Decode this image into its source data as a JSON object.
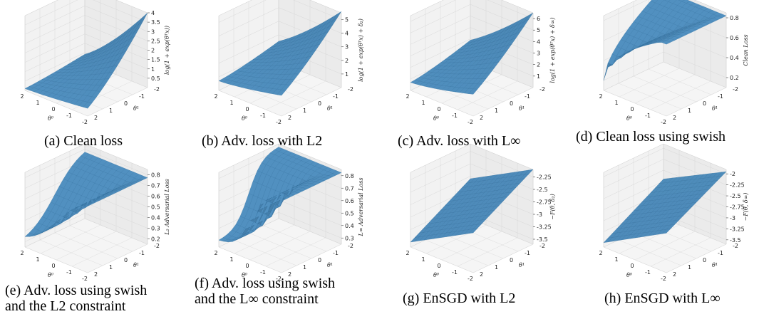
{
  "surface_color": "#5fa3d6",
  "surface_dark": "#2d5f86",
  "panels": [
    {
      "caption_line1": "(a) Clean loss",
      "caption_line2": "",
      "zlabel": "log(1 + exp(θᵀx))",
      "chart_data": {
        "type": "surface",
        "xlabel": "θ⁰",
        "ylabel": "θ¹",
        "x_ticks": [
          2,
          1,
          0,
          -1,
          -2
        ],
        "y_ticks": [
          -2,
          -1,
          0,
          1,
          2
        ],
        "z_ticks": [
          0.5,
          1.0,
          1.5,
          2.0,
          2.5,
          3.0,
          3.5,
          4.0
        ],
        "zlim": [
          0.0,
          4.0
        ],
        "corners": {
          "x-2_y-2": 4.0,
          "x2_y-2": 0.7,
          "x-2_y2": 0.7,
          "x2_y2": 0.1
        }
      }
    },
    {
      "caption_line1": "(b) Adv. loss with L2",
      "caption_line2": "",
      "zlabel": "log(1 + exp(θᵀx) + δ₂)",
      "chart_data": {
        "type": "surface",
        "xlabel": "θ⁰",
        "ylabel": "θ¹",
        "x_ticks": [
          2,
          1,
          0,
          -1,
          -2
        ],
        "y_ticks": [
          -2,
          -1,
          0,
          1,
          2
        ],
        "z_ticks": [
          1,
          2,
          3,
          4,
          5
        ],
        "zlim": [
          0,
          5.5
        ],
        "corners": {
          "x-2_y-2": 5.6,
          "x2_y-2": 2.0,
          "x-2_y2": 2.0,
          "x2_y2": 0.7
        }
      }
    },
    {
      "caption_line1": "(c) Adv. loss with L∞",
      "caption_line2": "",
      "zlabel": "log(1 + exp(θᵀx) + δ∞)",
      "chart_data": {
        "type": "surface",
        "xlabel": "θ⁰",
        "ylabel": "θ¹",
        "x_ticks": [
          2,
          1,
          0,
          -1,
          -2
        ],
        "y_ticks": [
          -2,
          -1,
          0,
          1,
          2
        ],
        "z_ticks": [
          1,
          2,
          3,
          4,
          5,
          6
        ],
        "zlim": [
          0,
          6.5
        ],
        "corners": {
          "x-2_y-2": 6.5,
          "x2_y-2": 2.5,
          "x-2_y2": 2.5,
          "x2_y2": 0.7
        }
      }
    },
    {
      "caption_line1": "(d) Clean loss using swish",
      "caption_line2": "",
      "zlabel": "Clean Loss",
      "chart_data": {
        "type": "surface",
        "xlabel": "θ⁰",
        "ylabel": "θ¹",
        "x_ticks": [
          2,
          1,
          0,
          -1,
          -2
        ],
        "y_ticks": [
          -2,
          -1,
          0,
          1,
          2
        ],
        "z_ticks": [
          0.2,
          0.4,
          0.6,
          0.8
        ],
        "zlim": [
          0.1,
          0.85
        ],
        "corners": {
          "x-2_y-2": 0.82,
          "x2_y-2": 0.75,
          "x-2_y2": 0.75,
          "x2_y2": 0.2
        }
      }
    },
    {
      "caption_line1": "(e) Adv. loss using swish",
      "caption_line2": "and the L2 constraint",
      "zlabel": "L₂ Adversarial Loss",
      "chart_data": {
        "type": "surface",
        "xlabel": "θ⁰",
        "ylabel": "θ¹",
        "x_ticks": [
          2,
          1,
          0,
          -1,
          -2
        ],
        "y_ticks": [
          -2,
          -1,
          0,
          1,
          2
        ],
        "z_ticks": [
          0.2,
          0.3,
          0.4,
          0.5,
          0.6,
          0.7,
          0.8
        ],
        "zlim": [
          0.15,
          0.85
        ],
        "corners": {
          "x-2_y-2": 0.82,
          "x2_y-2": 0.8,
          "x-2_y2": 0.8,
          "x2_y2": 0.2
        }
      }
    },
    {
      "caption_line1": "(f) Adv. loss using swish",
      "caption_line2": "and the L∞ constraint",
      "zlabel": "L∞ Adversarial Loss",
      "chart_data": {
        "type": "surface",
        "xlabel": "θ⁰",
        "ylabel": "θ¹",
        "x_ticks": [
          2,
          1,
          0,
          -1,
          -2
        ],
        "y_ticks": [
          -2,
          -1,
          0,
          1,
          2
        ],
        "z_ticks": [
          0.3,
          0.4,
          0.5,
          0.6,
          0.7,
          0.8
        ],
        "zlim": [
          0.25,
          0.85
        ],
        "corners": {
          "x-2_y-2": 0.83,
          "x2_y-2": 0.82,
          "x-2_y2": 0.82,
          "x2_y2": 0.3
        }
      }
    },
    {
      "caption_line1": "(g) EnSGD with L2",
      "caption_line2": "",
      "zlabel": "−F(θ, δ₂)",
      "chart_data": {
        "type": "surface",
        "xlabel": "θ⁰",
        "ylabel": "θ¹",
        "x_ticks": [
          2,
          1,
          0,
          -1,
          -2
        ],
        "y_ticks": [
          -2,
          -1,
          0,
          1,
          2
        ],
        "z_ticks": [
          -2.25,
          -2.5,
          -2.75,
          -3.0,
          -3.25,
          -3.5
        ],
        "zlim": [
          -3.6,
          -2.1
        ],
        "corners": {
          "x-2_y-2": -2.1,
          "x2_y-2": -2.8,
          "x-2_y2": -2.8,
          "x2_y2": -3.5
        }
      }
    },
    {
      "caption_line1": "(h) EnSGD with L∞",
      "caption_line2": "",
      "zlabel": "−F(θ, δ∞)",
      "chart_data": {
        "type": "surface",
        "xlabel": "θ⁰",
        "ylabel": "θ¹",
        "x_ticks": [
          2,
          1,
          0,
          -1,
          -2
        ],
        "y_ticks": [
          -2,
          -1,
          0,
          1,
          2
        ],
        "z_ticks": [
          -2.0,
          -2.25,
          -2.5,
          -2.75,
          -3.0,
          -3.25,
          -3.5
        ],
        "zlim": [
          -3.6,
          -1.9
        ],
        "corners": {
          "x-2_y-2": -1.95,
          "x2_y-2": -2.7,
          "x-2_y2": -2.7,
          "x2_y2": -3.5
        }
      }
    }
  ]
}
